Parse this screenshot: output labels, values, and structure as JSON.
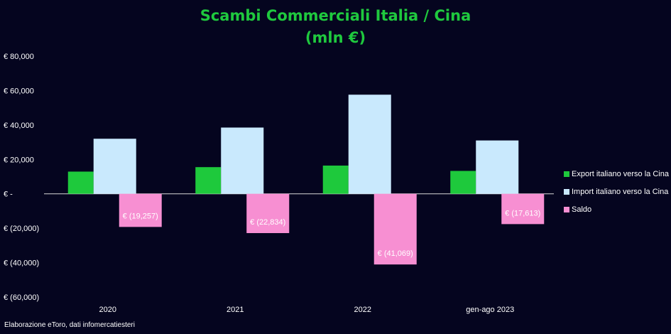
{
  "chart_data": {
    "type": "bar",
    "title": "Scambi Commerciali Italia / Cina",
    "subtitle": "(mln €)",
    "categories": [
      "2020",
      "2021",
      "2022",
      "gen-ago 2023"
    ],
    "series": [
      {
        "name": "Export italiano verso la Cina",
        "color": "#1ec93c",
        "values": [
          12900,
          15500,
          16400,
          13300
        ],
        "labels": [
          "",
          "",
          "",
          ""
        ]
      },
      {
        "name": "Import italiano verso la Cina",
        "color": "#c9e9fd",
        "values": [
          32000,
          38500,
          57600,
          31000
        ],
        "labels": [
          "",
          "",
          "",
          ""
        ]
      },
      {
        "name": "Saldo",
        "color": "#f78fd2",
        "values": [
          -19257,
          -22834,
          -41069,
          -17613
        ],
        "labels": [
          "€ (19,257)",
          "€ (22,834)",
          "€ (41,069)",
          "€ (17,613)"
        ]
      }
    ],
    "yticks": [
      {
        "value": 80000,
        "label": "€ 80,000"
      },
      {
        "value": 60000,
        "label": "€ 60,000"
      },
      {
        "value": 40000,
        "label": "€ 40,000"
      },
      {
        "value": 20000,
        "label": "€ 20,000"
      },
      {
        "value": 0,
        "label": "€ -"
      },
      {
        "value": -20000,
        "label": "€ (20,000)"
      },
      {
        "value": -40000,
        "label": "€ (40,000)"
      },
      {
        "value": -60000,
        "label": "€ (60,000)"
      }
    ],
    "ylim": [
      -60000,
      80000
    ],
    "grid": false,
    "legend_position": "right",
    "footnote": "Elaborazione eToro, dati infomercatiesteri"
  }
}
